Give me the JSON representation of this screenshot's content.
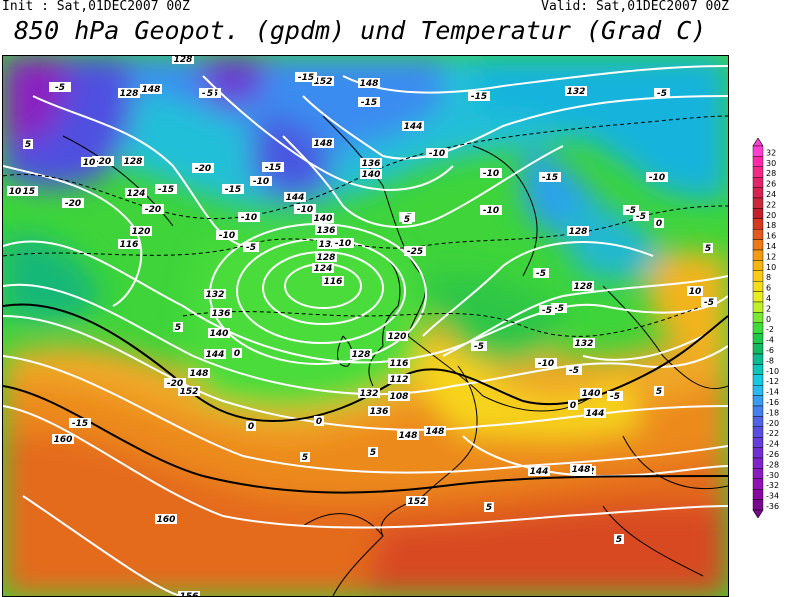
{
  "header": {
    "init": "Init : Sat,01DEC2007 00Z",
    "valid": "Valid: Sat,01DEC2007 00Z",
    "title": "850 hPa Geopot. (gpdm) und Temperatur (Grad C)"
  },
  "colors": {
    "land_outline": "#000000",
    "isohypse": "#ffffff",
    "background": "#ffffff"
  },
  "legend": {
    "labels": [
      "32",
      "30",
      "28",
      "26",
      "24",
      "22",
      "20",
      "18",
      "16",
      "14",
      "12",
      "10",
      "8",
      "6",
      "4",
      "2",
      "0",
      "-2",
      "-4",
      "-6",
      "-8",
      "-10",
      "-12",
      "-14",
      "-16",
      "-18",
      "-20",
      "-22",
      "-24",
      "-26",
      "-28",
      "-30",
      "-32",
      "-34",
      "-36"
    ],
    "colors": [
      "#ff3fd0",
      "#ff2aa8",
      "#f22a86",
      "#e02668",
      "#d42450",
      "#c82a3a",
      "#c0202a",
      "#d23a22",
      "#e25a1e",
      "#ec7a18",
      "#f29a14",
      "#f6b414",
      "#f8cc18",
      "#f4dc1e",
      "#e8ec22",
      "#bff02a",
      "#7ae836",
      "#3edc3a",
      "#22c848",
      "#16b860",
      "#10b890",
      "#10c4b8",
      "#18c8e0",
      "#2eb8f0",
      "#3a9cf0",
      "#4680ec",
      "#5064e4",
      "#5a4ede",
      "#6440d8",
      "#7030d0",
      "#7e24c8",
      "#8a1cbc",
      "#9012b0",
      "#8808a0",
      "#780890"
    ]
  },
  "map_labels": {
    "geopotential": [
      "128",
      "148",
      "128",
      "128",
      "124",
      "120",
      "116",
      "132",
      "136",
      "140",
      "144",
      "148",
      "152",
      "160",
      "160",
      "148",
      "132",
      "128",
      "144",
      "136",
      "132",
      "128",
      "120",
      "116",
      "112",
      "108",
      "116",
      "124",
      "128",
      "132",
      "136",
      "140",
      "144",
      "148",
      "152",
      "148",
      "152",
      "140",
      "144",
      "148",
      "152",
      "132",
      "128",
      "136",
      "140",
      "144",
      "148",
      "156"
    ],
    "temperature": [
      "-25",
      "-25",
      "-20",
      "-20",
      "-20",
      "-15",
      "-15",
      "-15",
      "-20",
      "-15",
      "-10",
      "-10",
      "-10",
      "-15",
      "-15",
      "-10",
      "-10",
      "-5",
      "-5",
      "-15",
      "-10",
      "-10",
      "-10",
      "-15",
      "-10",
      "-5",
      "-5",
      "-5",
      "-5",
      "-5",
      "-5",
      "-5",
      "0",
      "0",
      "0",
      "0",
      "5",
      "5",
      "5",
      "5",
      "5",
      "5",
      "5",
      "5",
      "10",
      "10",
      "5",
      "-25",
      "-20",
      "-15",
      "-5",
      "0",
      "5",
      "10",
      "-5",
      "-10",
      "-5",
      "-5",
      "5"
    ]
  }
}
